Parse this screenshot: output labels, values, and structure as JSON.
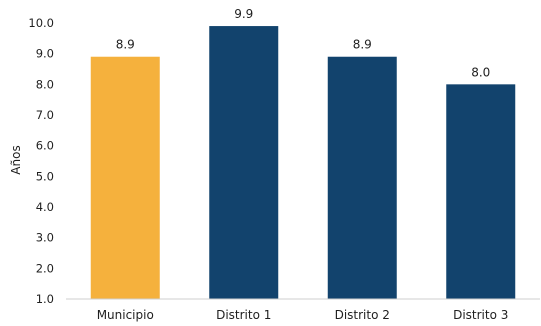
{
  "chart_data": {
    "type": "bar",
    "title": "",
    "xlabel": "",
    "ylabel": "Años",
    "ylim": [
      1.0,
      10.0
    ],
    "yticks": [
      "1.0",
      "2.0",
      "3.0",
      "4.0",
      "5.0",
      "6.0",
      "7.0",
      "8.0",
      "9.0",
      "10.0"
    ],
    "categories": [
      "Municipio",
      "Distrito 1",
      "Distrito 2",
      "Distrito 3"
    ],
    "values": [
      8.9,
      9.9,
      8.9,
      8.0
    ],
    "data_labels": [
      "8.9",
      "9.9",
      "8.9",
      "8.0"
    ],
    "bar_colors": [
      "#F5B13D",
      "#12436D",
      "#12436D",
      "#12436D"
    ],
    "grid": false,
    "legend": "none"
  }
}
